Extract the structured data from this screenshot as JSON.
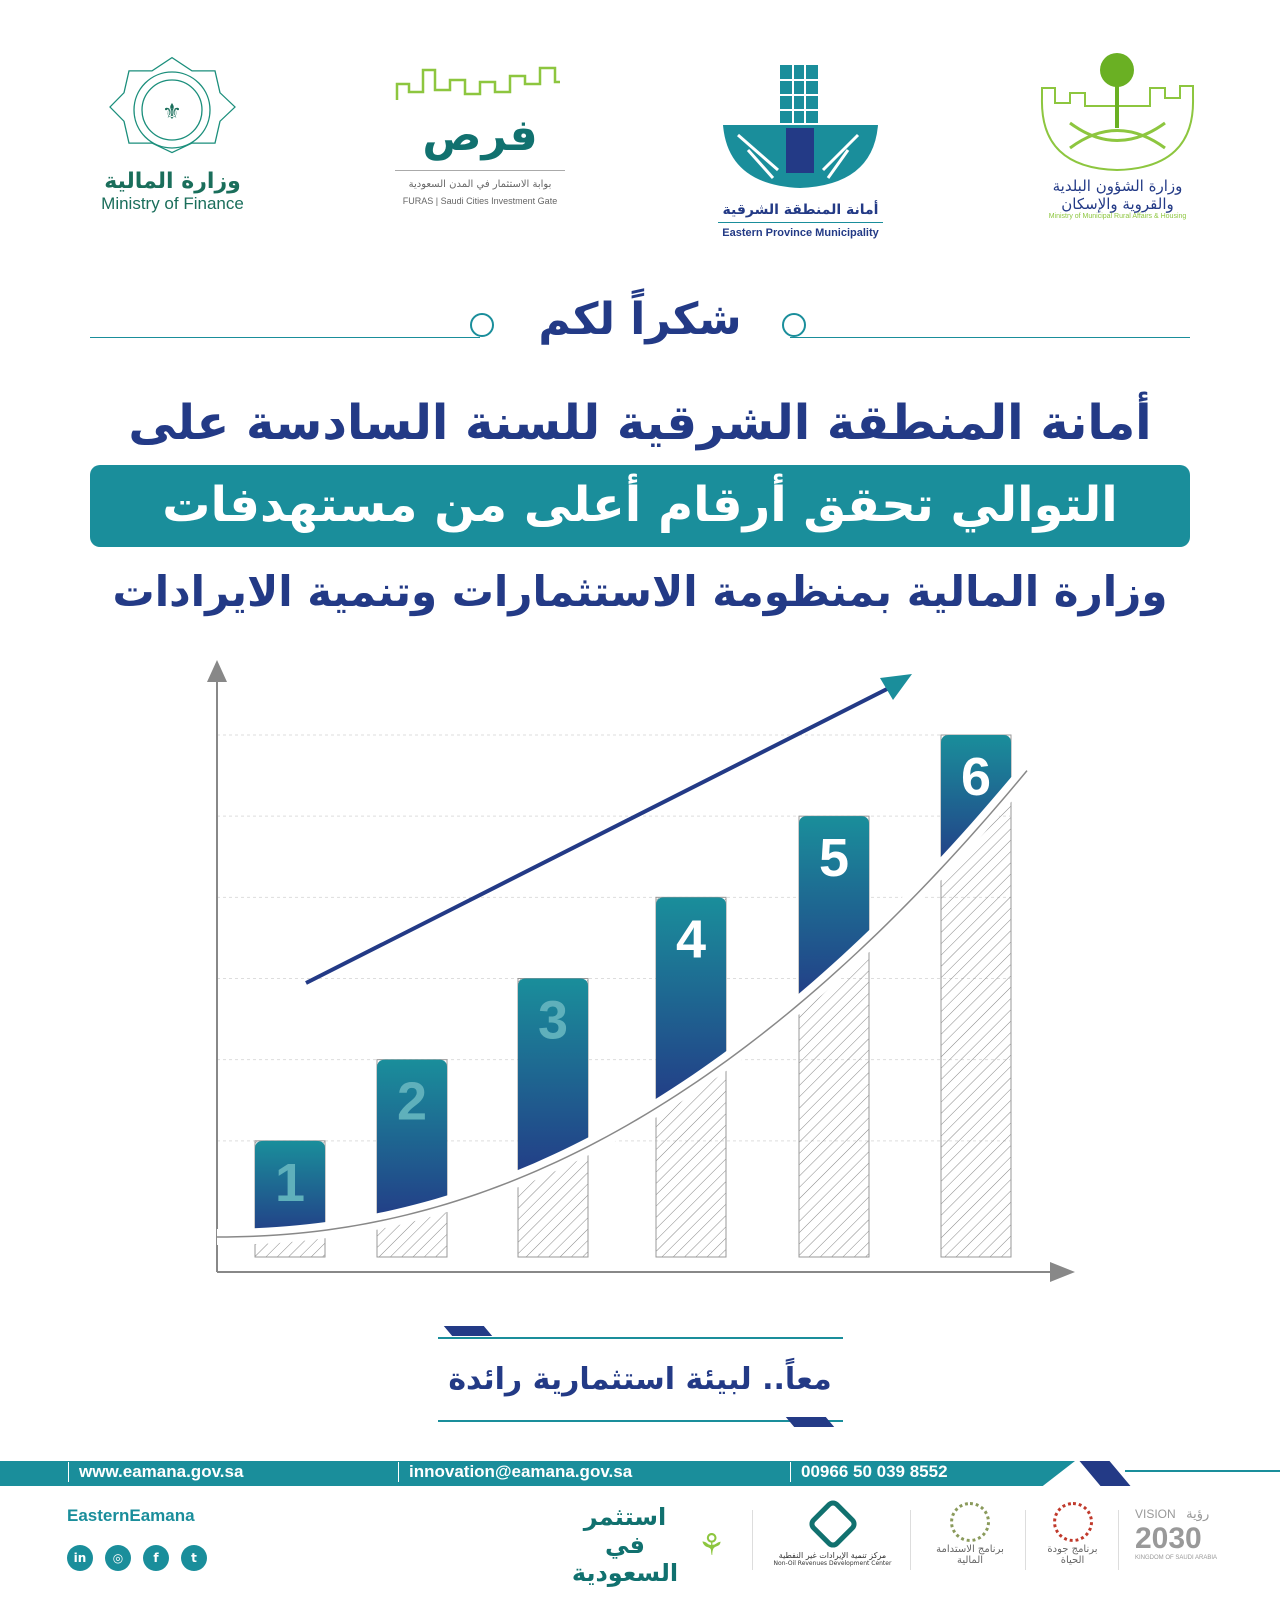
{
  "logos": {
    "finance": {
      "ar": "وزارة المالية",
      "en": "Ministry of Finance"
    },
    "furas": {
      "ar_logo": "فرص",
      "ar": "بوابة الاستثمار في المدن السعودية",
      "en": "FURAS | Saudi Cities Investment Gate"
    },
    "eastern": {
      "ar": "أمانة المنطقة الشرقية",
      "en": "Eastern Province Municipality"
    },
    "momrah": {
      "ar1": "وزارة الشؤون البلدية",
      "ar2": "والقروية والإسكان",
      "en": "Ministry of Municipal Rural Affairs & Housing"
    }
  },
  "thanks": "شكراً لكم",
  "headline": {
    "line1": "أمانة المنطقة الشرقية للسنة السادسة على",
    "line2": "التوالي تحقق أرقام أعلى من مستهدفات",
    "line3": "وزارة المالية بمنظومة الاستثمارات وتنمية الايرادات"
  },
  "chart_data": {
    "type": "bar",
    "categories": [
      "1",
      "2",
      "3",
      "4",
      "5",
      "6"
    ],
    "values": [
      1,
      2,
      3,
      4,
      5,
      6
    ],
    "labels": [
      "1",
      "2",
      "3",
      "4",
      "5",
      "6"
    ],
    "trend": "up",
    "grid": true
  },
  "tagline": "معاً.. لبيئة استثمارية رائدة",
  "footer": {
    "website": "www.eamana.gov.sa",
    "email": "innovation@eamana.gov.sa",
    "phone": "00966 50 039 8552",
    "handle": "EasternEamana",
    "social": [
      "linkedin-icon",
      "instagram-icon",
      "facebook-icon",
      "twitter-icon"
    ],
    "partners": {
      "invest": "استثمر في السعودية",
      "nordc_ar": "مركز تنمية الإيرادات غير النفطية",
      "nordc_en": "Non-Oil Revenues Development Center",
      "fiscal": "برنامج الاستدامة المالية",
      "quality": "برنامج جودة الحياة",
      "vision_en": "VISION",
      "vision_ar": "رؤية",
      "vision_year": "2030",
      "vision_kingdom": "KINGDOM OF SAUDI ARABIA"
    }
  },
  "colors": {
    "navy": "#233a86",
    "teal": "#1a8e9b",
    "green": "#8dc63f"
  }
}
